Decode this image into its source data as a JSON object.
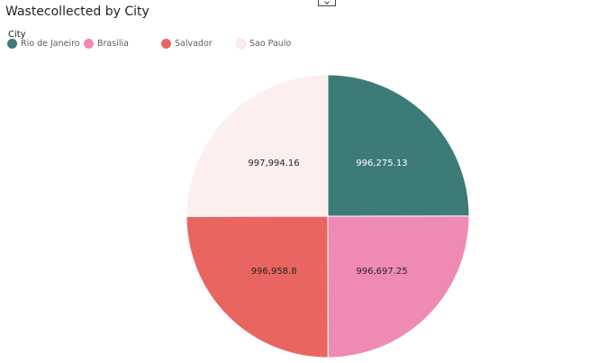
{
  "header": {
    "title": "Wastecollected by City"
  },
  "legend": {
    "title": "City",
    "items": [
      {
        "label": "Rio de Janeiro",
        "color": "#3d7b78"
      },
      {
        "label": "Brasilia",
        "color": "#ef8ab4"
      },
      {
        "label": "Salvador",
        "color": "#e8665f"
      },
      {
        "label": "Sao Paulo",
        "color": "#fcefee"
      }
    ]
  },
  "chart_data": {
    "type": "pie",
    "title": "Wastecollected by City",
    "legend_title": "City",
    "legend_position": "top-left",
    "slices": [
      {
        "label": "Rio de Janeiro",
        "value": 996275.13,
        "display": "996,275.13",
        "color": "#3d7b78",
        "label_color": "#ffffff"
      },
      {
        "label": "Brasilia",
        "value": 996697.25,
        "display": "996,697.25",
        "color": "#ef8ab4",
        "label_color": "#252423"
      },
      {
        "label": "Salvador",
        "value": 996958.8,
        "display": "996,958.8",
        "color": "#e8665f",
        "label_color": "#252423"
      },
      {
        "label": "Sao Paulo",
        "value": 997994.16,
        "display": "997,994.16",
        "color": "#fcefee",
        "label_color": "#252423"
      }
    ]
  }
}
